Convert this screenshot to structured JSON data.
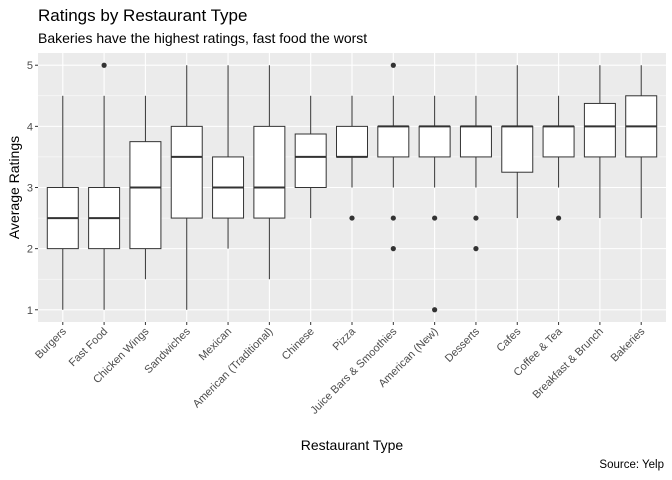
{
  "chart_data": {
    "type": "boxplot",
    "title": "Ratings by Restaurant Type",
    "subtitle": "Bakeries have the highest ratings, fast food the worst",
    "caption": "Source: Yelp",
    "xlabel": "Restaurant Type",
    "ylabel": "Average Ratings",
    "ylim": [
      0.8,
      5.2
    ],
    "yticks": [
      1,
      2,
      3,
      4,
      5
    ],
    "grid": true,
    "categories": [
      "Burgers",
      "Fast Food",
      "Chicken Wings",
      "Sandwiches",
      "Mexican",
      "American (Traditional)",
      "Chinese",
      "Pizza",
      "Juice Bars & Smoothies",
      "American (New)",
      "Desserts",
      "Cafes",
      "Coffee & Tea",
      "Breakfast & Brunch",
      "Bakeries"
    ],
    "boxes": [
      {
        "min": 1.0,
        "q1": 2.0,
        "median": 2.5,
        "q3": 3.0,
        "max": 4.5,
        "outliers": []
      },
      {
        "min": 1.0,
        "q1": 2.0,
        "median": 2.5,
        "q3": 3.0,
        "max": 4.5,
        "outliers": [
          5.0
        ]
      },
      {
        "min": 1.5,
        "q1": 2.0,
        "median": 3.0,
        "q3": 3.75,
        "max": 4.5,
        "outliers": []
      },
      {
        "min": 1.0,
        "q1": 2.5,
        "median": 3.5,
        "q3": 4.0,
        "max": 5.0,
        "outliers": []
      },
      {
        "min": 2.0,
        "q1": 2.5,
        "median": 3.0,
        "q3": 3.5,
        "max": 5.0,
        "outliers": []
      },
      {
        "min": 1.5,
        "q1": 2.5,
        "median": 3.0,
        "q3": 4.0,
        "max": 5.0,
        "outliers": []
      },
      {
        "min": 2.5,
        "q1": 3.0,
        "median": 3.5,
        "q3": 3.875,
        "max": 4.5,
        "outliers": []
      },
      {
        "min": 3.0,
        "q1": 3.5,
        "median": 3.5,
        "q3": 4.0,
        "max": 4.5,
        "outliers": [
          2.5
        ]
      },
      {
        "min": 3.0,
        "q1": 3.5,
        "median": 4.0,
        "q3": 4.0,
        "max": 4.5,
        "outliers": [
          5.0,
          2.5,
          2.0
        ]
      },
      {
        "min": 3.0,
        "q1": 3.5,
        "median": 4.0,
        "q3": 4.0,
        "max": 4.5,
        "outliers": [
          2.5,
          1.0
        ]
      },
      {
        "min": 3.0,
        "q1": 3.5,
        "median": 4.0,
        "q3": 4.0,
        "max": 4.5,
        "outliers": [
          2.5,
          2.0
        ]
      },
      {
        "min": 2.5,
        "q1": 3.25,
        "median": 4.0,
        "q3": 4.0,
        "max": 5.0,
        "outliers": []
      },
      {
        "min": 3.0,
        "q1": 3.5,
        "median": 4.0,
        "q3": 4.0,
        "max": 4.5,
        "outliers": [
          2.5
        ]
      },
      {
        "min": 2.5,
        "q1": 3.5,
        "median": 4.0,
        "q3": 4.375,
        "max": 5.0,
        "outliers": []
      },
      {
        "min": 2.5,
        "q1": 3.5,
        "median": 4.0,
        "q3": 4.5,
        "max": 5.0,
        "outliers": []
      }
    ],
    "colors": {
      "panel_background": "#ebebeb",
      "grid_major": "#ffffff",
      "box_fill": "#ffffff",
      "box_stroke": "#333333",
      "tick_text": "#4d4d4d"
    }
  }
}
